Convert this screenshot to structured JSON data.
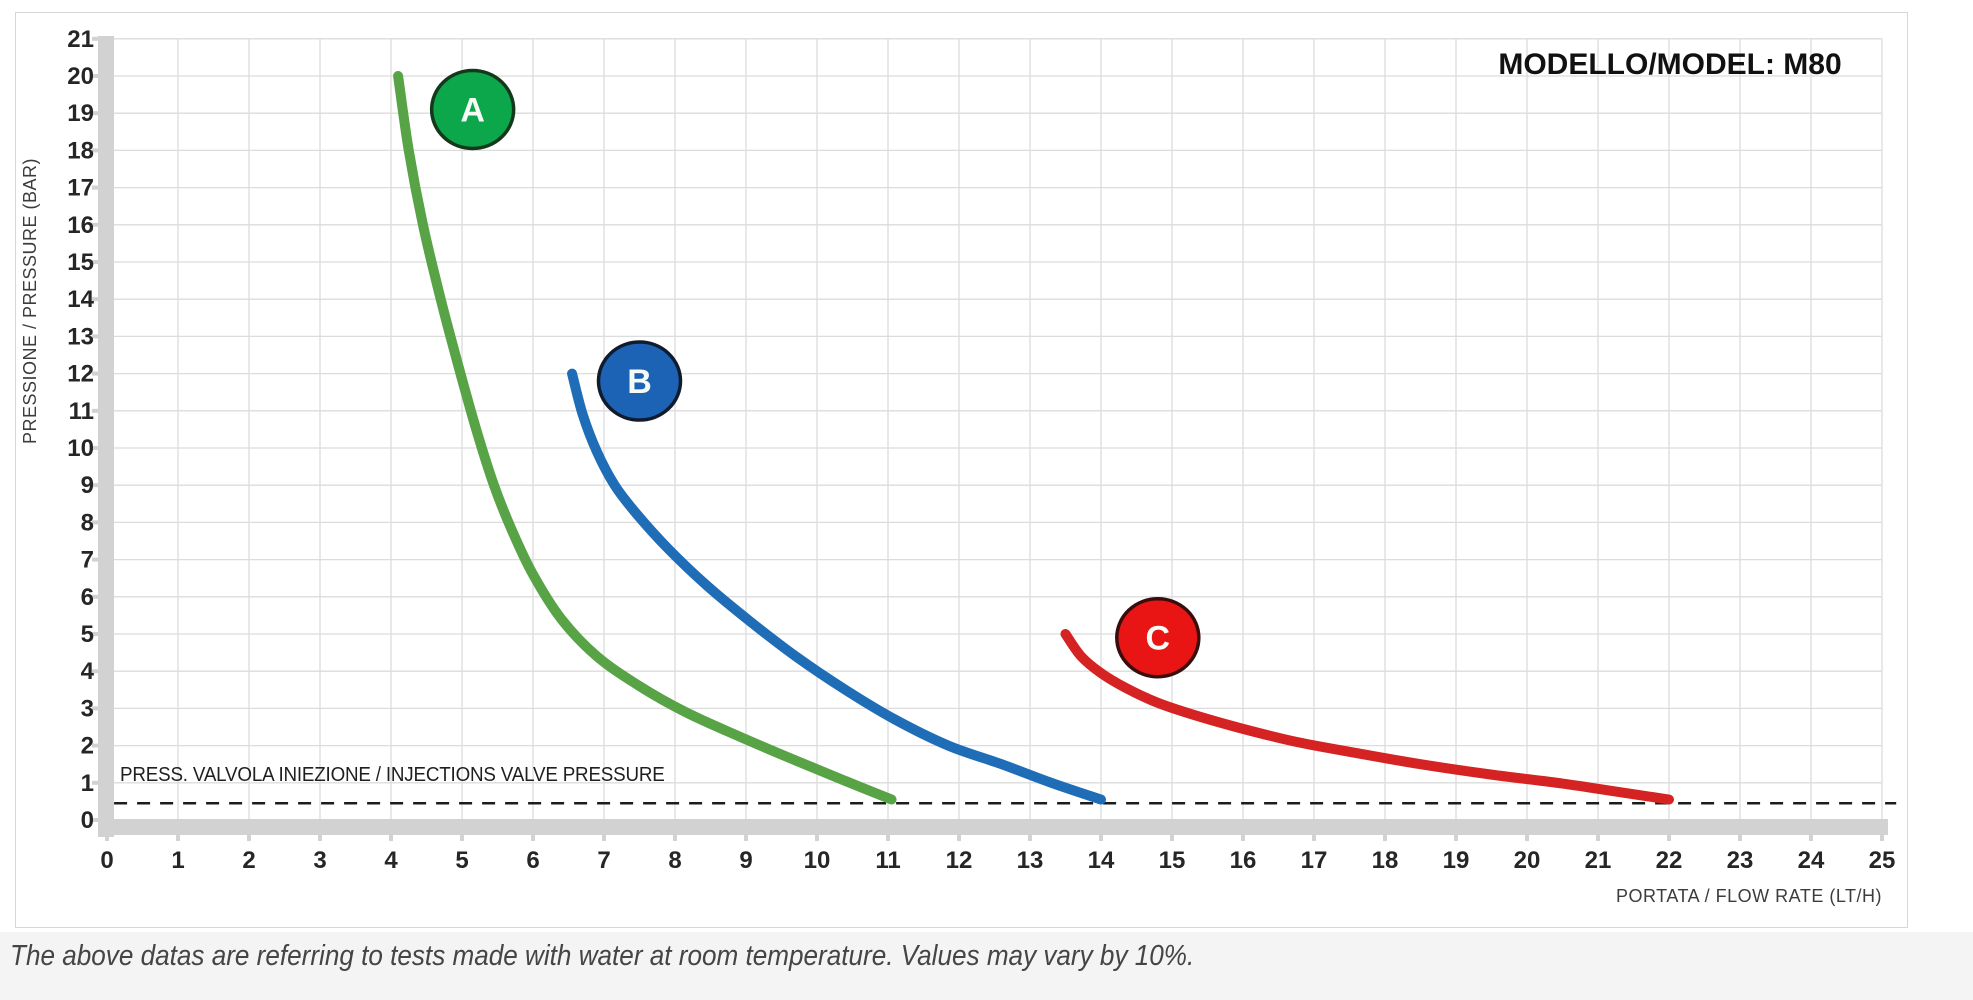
{
  "header": {
    "model_label": "MODELLO/MODEL: M80"
  },
  "footnote": "The above datas are referring to tests made with water at room temperature. Values may vary by 10%.",
  "chart_data": {
    "type": "line",
    "title": "",
    "xlabel": "PORTATA / FLOW RATE (LT/H)",
    "ylabel": "PRESSIONE / PRESSURE (BAR)",
    "xlim": [
      0,
      25
    ],
    "ylim": [
      0,
      21
    ],
    "grid": true,
    "x_tick_labels": [
      "0",
      "1",
      "2",
      "3",
      "4",
      "5",
      "6",
      "7",
      "8",
      "9",
      "10",
      "11",
      "12",
      "13",
      "14",
      "15",
      "16",
      "17",
      "18",
      "19",
      "20",
      "21",
      "22",
      "23",
      "24",
      "25"
    ],
    "y_tick_labels": [
      "0",
      "1",
      "2",
      "3",
      "4",
      "5",
      "6",
      "7",
      "8",
      "9",
      "10",
      "11",
      "12",
      "13",
      "14",
      "15",
      "16",
      "17",
      "18",
      "19",
      "20",
      "21"
    ],
    "colors": {
      "grid": "#dcdcdc",
      "axis_band": "#d2d2d2",
      "tick_text": "#262626",
      "dash_line": "#1c1c1c"
    },
    "annotation": {
      "label": "PRESS. VALVOLA INIEZIONE / INJECTIONS VALVE PRESSURE",
      "dash_level_bar": 0.45,
      "dash_x_range": [
        0.1,
        25.2
      ]
    },
    "series": [
      {
        "name": "A",
        "color": "#57a345",
        "badge_fill": "#0ca64b",
        "badge_border": "#14381a",
        "badge_center": [
          5.15,
          19.1
        ],
        "points": [
          [
            4.1,
            20
          ],
          [
            4.25,
            18
          ],
          [
            4.45,
            16
          ],
          [
            4.7,
            14
          ],
          [
            4.95,
            12.2
          ],
          [
            5.2,
            10.5
          ],
          [
            5.45,
            9.0
          ],
          [
            5.7,
            7.8
          ],
          [
            6.0,
            6.6
          ],
          [
            6.4,
            5.4
          ],
          [
            6.9,
            4.4
          ],
          [
            7.5,
            3.6
          ],
          [
            8.15,
            2.9
          ],
          [
            8.9,
            2.25
          ],
          [
            9.7,
            1.6
          ],
          [
            10.4,
            1.05
          ],
          [
            11.05,
            0.55
          ]
        ]
      },
      {
        "name": "B",
        "color": "#1f6db6",
        "badge_fill": "#1d63b5",
        "badge_border": "#101c2e",
        "badge_center": [
          7.5,
          11.8
        ],
        "points": [
          [
            6.55,
            12
          ],
          [
            6.7,
            10.9
          ],
          [
            6.9,
            9.9
          ],
          [
            7.15,
            9.0
          ],
          [
            7.45,
            8.25
          ],
          [
            7.9,
            7.3
          ],
          [
            8.45,
            6.3
          ],
          [
            9.05,
            5.35
          ],
          [
            9.7,
            4.4
          ],
          [
            10.4,
            3.5
          ],
          [
            11.1,
            2.7
          ],
          [
            11.85,
            2.0
          ],
          [
            12.6,
            1.5
          ],
          [
            13.3,
            1.0
          ],
          [
            14.0,
            0.55
          ]
        ]
      },
      {
        "name": "C",
        "color": "#d42322",
        "badge_fill": "#e91414",
        "badge_border": "#3a0d0d",
        "badge_center": [
          14.8,
          4.9
        ],
        "points": [
          [
            13.5,
            5.0
          ],
          [
            13.72,
            4.4
          ],
          [
            14.0,
            3.95
          ],
          [
            14.35,
            3.55
          ],
          [
            14.8,
            3.15
          ],
          [
            15.35,
            2.8
          ],
          [
            16.0,
            2.45
          ],
          [
            16.75,
            2.1
          ],
          [
            17.6,
            1.8
          ],
          [
            18.5,
            1.5
          ],
          [
            19.5,
            1.22
          ],
          [
            20.5,
            0.98
          ],
          [
            21.3,
            0.75
          ],
          [
            22.0,
            0.55
          ]
        ]
      }
    ]
  }
}
